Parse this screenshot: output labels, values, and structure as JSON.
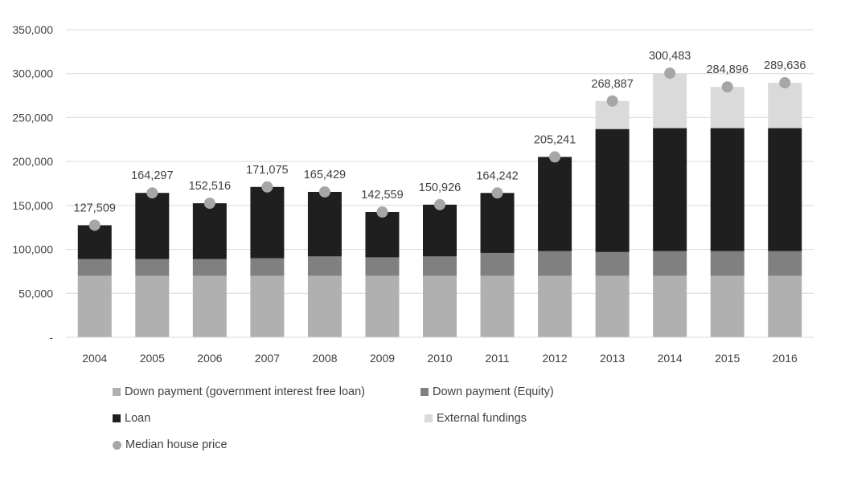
{
  "chart_data": {
    "type": "bar",
    "stacked": true,
    "categories": [
      "2004",
      "2005",
      "2006",
      "2007",
      "2008",
      "2009",
      "2010",
      "2011",
      "2012",
      "2013",
      "2014",
      "2015",
      "2016"
    ],
    "series": [
      {
        "name": "Down payment (government interest free loan)",
        "color": "#b0b0b0",
        "values": [
          70000,
          70000,
          70000,
          70000,
          70000,
          70000,
          70000,
          70000,
          70000,
          70000,
          70000,
          70000,
          70000
        ]
      },
      {
        "name": "Down payment (Equity)",
        "color": "#808080",
        "values": [
          19000,
          19000,
          19000,
          20000,
          22000,
          21000,
          22000,
          26000,
          28000,
          27000,
          28000,
          28000,
          28000
        ]
      },
      {
        "name": "Loan",
        "color": "#1f1f1f",
        "values": [
          38509,
          75297,
          63516,
          81075,
          73429,
          51559,
          58926,
          68242,
          107241,
          140000,
          140000,
          140000,
          140000
        ]
      },
      {
        "name": "External fundings",
        "color": "#dadada",
        "values": [
          0,
          0,
          0,
          0,
          0,
          0,
          0,
          0,
          0,
          31887,
          62483,
          46896,
          51636
        ]
      }
    ],
    "overlay": {
      "name": "Median house price",
      "type": "scatter",
      "color": "#a6a6a6",
      "values": [
        127509,
        164297,
        152516,
        171075,
        165429,
        142559,
        150926,
        164242,
        205241,
        268887,
        300483,
        284896,
        289636
      ],
      "labels": [
        "127,509",
        "164,297",
        "152,516",
        "171,075",
        "165,429",
        "142,559",
        "150,926",
        "164,242",
        "205,241",
        "268,887",
        "300,483",
        "284,896",
        "289,636"
      ]
    },
    "ylim": [
      0,
      350000
    ],
    "yticks": [
      0,
      50000,
      100000,
      150000,
      200000,
      250000,
      300000,
      350000
    ],
    "ytick_labels": [
      "-",
      "50,000",
      "100,000",
      "150,000",
      "200,000",
      "250,000",
      "300,000",
      "350,000"
    ],
    "grid": true,
    "legend_position": "bottom",
    "title": "",
    "xlabel": "",
    "ylabel": ""
  },
  "legend": {
    "items": [
      {
        "label": "Down payment (government interest free loan)",
        "color": "#b0b0b0",
        "marker": "square"
      },
      {
        "label": "Down payment (Equity)",
        "color": "#808080",
        "marker": "square"
      },
      {
        "label": "Loan",
        "color": "#1f1f1f",
        "marker": "square"
      },
      {
        "label": "External fundings",
        "color": "#dadada",
        "marker": "square"
      },
      {
        "label": "Median house price",
        "color": "#a6a6a6",
        "marker": "circle"
      }
    ]
  }
}
